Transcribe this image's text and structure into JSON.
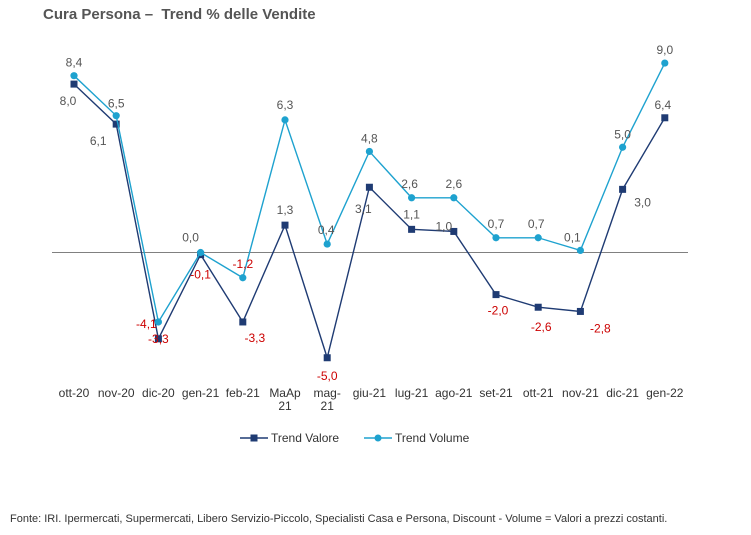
{
  "title": "Cura Persona –  Trend % delle Vendite",
  "source": "Fonte: IRI. Ipermercati, Supermercati, Libero Servizio-Piccolo,  Specialisti Casa e Persona, Discount -  Volume =  Valori a prezzi  costanti.",
  "chart_data": {
    "type": "line",
    "categories": [
      "ott-20",
      "nov-20",
      "dic-20",
      "gen-21",
      "feb-21",
      "MaAp\n21",
      "mag-\n21",
      "giu-21",
      "lug-21",
      "ago-21",
      "set-21",
      "ott-21",
      "nov-21",
      "dic-21",
      "gen-22"
    ],
    "series": [
      {
        "name": "Trend Valore",
        "color": "#1f3b73",
        "marker": "square",
        "values": [
          8.0,
          6.1,
          -4.1,
          -0.1,
          -3.3,
          1.3,
          -5.0,
          3.1,
          1.1,
          1.0,
          -2.0,
          -2.6,
          -2.8,
          3.0,
          6.4
        ],
        "labels": [
          "8,0",
          "6,1",
          "-4,1",
          "-0,1",
          "-3,3",
          "1,3",
          "-5,0",
          "3,1",
          "1,1",
          "1,0",
          "-2,0",
          "-2,6",
          "-2,8",
          "3,0",
          "6,4"
        ]
      },
      {
        "name": "Trend Volume",
        "color": "#1ea2cf",
        "marker": "circle",
        "values": [
          8.4,
          6.5,
          -3.3,
          0.0,
          -1.2,
          6.3,
          0.4,
          4.8,
          2.6,
          2.6,
          0.7,
          0.7,
          0.1,
          5.0,
          9.0
        ],
        "labels": [
          "8,4",
          "6,5",
          "-3,3",
          "0,0",
          "-1,2",
          "6,3",
          "0,4",
          "4,8",
          "2,6",
          "2,6",
          "0,7",
          "0,7",
          "0,1",
          "5,0",
          "9,0"
        ]
      }
    ],
    "negative_label_color": "#cc0000",
    "positive_label_color": "#555555",
    "legend_position": "bottom",
    "grid": false,
    "zero_line": true
  }
}
